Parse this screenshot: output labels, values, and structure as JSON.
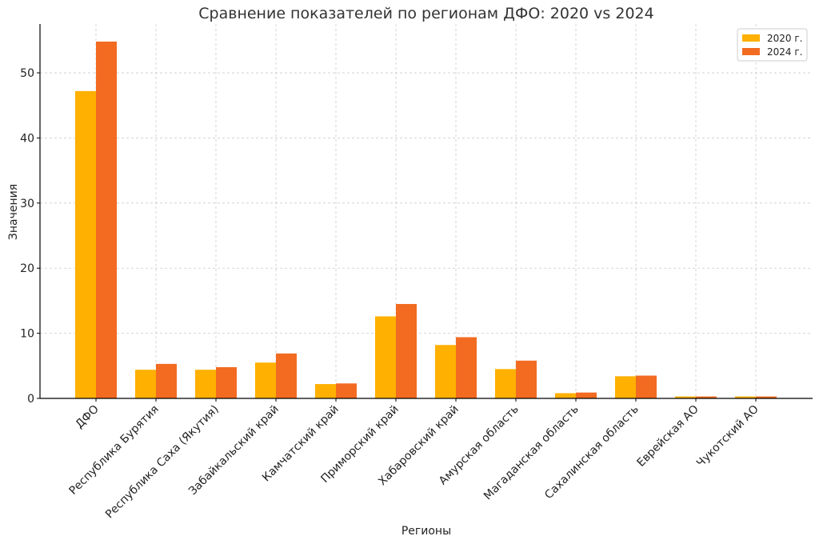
{
  "chart_data": {
    "type": "bar",
    "title": "Сравнение показателей по регионам ДФО: 2020 vs 2024",
    "xlabel": "Регионы",
    "ylabel": "Значения",
    "ylim": [
      0,
      57.5
    ],
    "yticks": [
      0,
      10,
      20,
      30,
      40,
      50
    ],
    "grid": true,
    "legend_position": "top-right",
    "categories": [
      "ДФО",
      "Республика Бурятия",
      "Республика Саха (Якутия)",
      "Забайкальский край",
      "Камчатский край",
      "Приморский край",
      "Хабаровский край",
      "Амурская область",
      "Магаданская область",
      "Сахалинская область",
      "Еврейская АО",
      "Чукотский АО"
    ],
    "series": [
      {
        "name": "2020 г.",
        "color": "#FFB000",
        "values": [
          47.2,
          4.4,
          4.4,
          5.5,
          2.2,
          12.6,
          8.2,
          4.5,
          0.8,
          3.4,
          0.3,
          0.3
        ]
      },
      {
        "name": "2024 г.",
        "color": "#F26B21",
        "values": [
          54.8,
          5.3,
          4.8,
          6.9,
          2.3,
          14.5,
          9.4,
          5.8,
          0.9,
          3.5,
          0.3,
          0.3
        ]
      }
    ]
  }
}
